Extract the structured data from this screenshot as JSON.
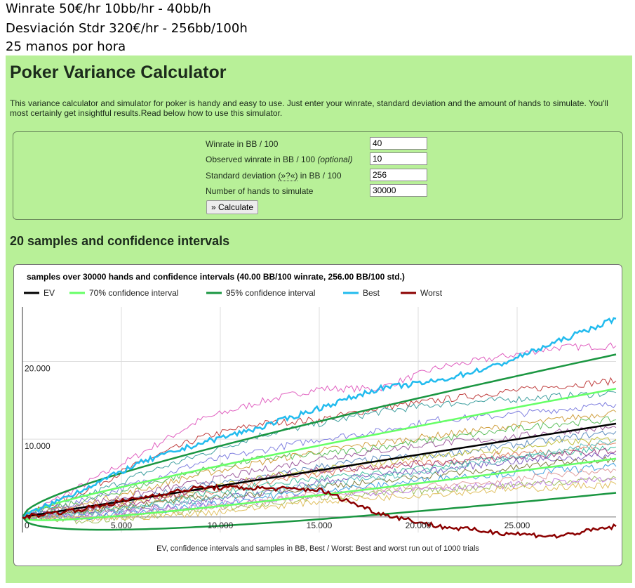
{
  "notes": [
    "Winrate 50€/hr 10bb/hr - 40bb/h",
    "Desviación Stdr 320€/hr - 256bb/100h",
    "25 manos por hora"
  ],
  "page": {
    "title": "Poker Variance Calculator",
    "intro": "This variance calculator and simulator for poker is handy and easy to use. Just enter your winrate, standard deviation and the amount of hands to simulate. You'll most certainly get insightful results.Read below how to use this simulator.",
    "section_title": "20 samples and confidence intervals"
  },
  "form": {
    "winrate_label": "Winrate in BB / 100",
    "winrate_value": "40",
    "observed_label": "Observed winrate in BB / 100",
    "observed_optional": "(optional)",
    "observed_value": "10",
    "std_label_pre": "Standard deviation",
    "std_help": "(»?«)",
    "std_label_post": "in BB / 100",
    "std_value": "256",
    "hands_label": "Number of hands to simulate",
    "hands_value": "30000",
    "calculate_label": "» Calculate"
  },
  "chart_data": {
    "type": "line",
    "title": "samples over 30000 hands and confidence intervals (40.00 BB/100 winrate, 256.00 BB/100 std.)",
    "caption": "EV, confidence intervals and samples in BB, Best / Worst: Best and worst run out of 1000 trials",
    "legend": [
      {
        "name": "EV",
        "color": "#000000"
      },
      {
        "name": "70% confidence interval",
        "color": "#66ff66"
      },
      {
        "name": "95% confidence interval",
        "color": "#1a9641"
      },
      {
        "name": "Best",
        "color": "#22bbee"
      },
      {
        "name": "Worst",
        "color": "#8b0000"
      }
    ],
    "xlim": [
      0,
      30000
    ],
    "ylim": [
      -2000,
      27000
    ],
    "x_ticks": [
      5000,
      10000,
      15000,
      20000,
      25000
    ],
    "x_tick_labels": [
      "5.000",
      "10.000",
      "15.000",
      "20.000",
      "25.000"
    ],
    "y_ticks": [
      0,
      10000,
      20000
    ],
    "y_tick_labels": [
      "0",
      "10.000",
      "20.000"
    ],
    "grid": true,
    "ev": {
      "x": [
        0,
        30000
      ],
      "y": [
        0,
        12000
      ]
    },
    "confidence_70": {
      "upper_end": 16500,
      "lower_end": 7500
    },
    "confidence_95": {
      "upper_end": 20900,
      "lower_end": 3100
    },
    "best": {
      "x": [
        0,
        3000,
        6000,
        9000,
        12000,
        15000,
        18000,
        21000,
        24000,
        27000,
        30000
      ],
      "y": [
        0,
        3500,
        7000,
        9500,
        11500,
        14000,
        16500,
        17500,
        19500,
        22500,
        25500
      ]
    },
    "worst": {
      "x": [
        0,
        3000,
        6000,
        9000,
        12000,
        15000,
        18000,
        21000,
        24000,
        27000,
        30000
      ],
      "y": [
        0,
        1000,
        2500,
        3800,
        3700,
        3500,
        500,
        -1200,
        -2000,
        -2500,
        -1200
      ]
    },
    "samples": [
      {
        "color": "#e060c0",
        "y": [
          0,
          4000,
          8200,
          12500,
          14800,
          16500,
          16500,
          19200,
          20500,
          21800,
          22000
        ]
      },
      {
        "color": "#c04040",
        "y": [
          0,
          3200,
          7000,
          10200,
          12000,
          12500,
          14000,
          15000,
          16000,
          16800,
          17500
        ]
      },
      {
        "color": "#40a0a0",
        "y": [
          0,
          2500,
          5500,
          8000,
          10500,
          12000,
          13500,
          14500,
          15000,
          15500,
          16000
        ]
      },
      {
        "color": "#8080e0",
        "y": [
          0,
          2000,
          4500,
          7000,
          8500,
          10000,
          11000,
          12500,
          13000,
          13800,
          14500
        ]
      },
      {
        "color": "#d0a040",
        "y": [
          0,
          1500,
          3500,
          5500,
          7000,
          8500,
          9500,
          10500,
          11500,
          12500,
          13500
        ]
      },
      {
        "color": "#60c060",
        "y": [
          0,
          2000,
          4000,
          6000,
          7500,
          8000,
          9000,
          10000,
          11000,
          12000,
          12500
        ]
      },
      {
        "color": "#a060a0",
        "y": [
          0,
          1500,
          3000,
          4500,
          6000,
          7500,
          8500,
          9500,
          10000,
          11000,
          11500
        ]
      },
      {
        "color": "#6090c0",
        "y": [
          0,
          1000,
          2500,
          4000,
          5000,
          6500,
          7500,
          8000,
          9000,
          10000,
          11000
        ]
      },
      {
        "color": "#c0c040",
        "y": [
          0,
          500,
          2000,
          3500,
          5000,
          6000,
          7000,
          8000,
          8500,
          9500,
          10000
        ]
      },
      {
        "color": "#e08060",
        "y": [
          0,
          1000,
          2000,
          3000,
          4500,
          5500,
          6500,
          7000,
          8000,
          8500,
          9500
        ]
      },
      {
        "color": "#40c0a0",
        "y": [
          0,
          500,
          1500,
          3000,
          4000,
          5000,
          5500,
          6500,
          7500,
          8000,
          9000
        ]
      },
      {
        "color": "#a04080",
        "y": [
          0,
          800,
          2000,
          3500,
          5000,
          6000,
          6500,
          7000,
          7500,
          8000,
          8500
        ]
      },
      {
        "color": "#8060c0",
        "y": [
          0,
          0,
          1000,
          2000,
          3000,
          4500,
          5500,
          6000,
          7000,
          7500,
          8000
        ]
      },
      {
        "color": "#808040",
        "y": [
          0,
          500,
          1500,
          2500,
          3000,
          4000,
          4500,
          5500,
          6000,
          7000,
          7500
        ]
      },
      {
        "color": "#40a0e0",
        "y": [
          0,
          0,
          500,
          1500,
          2500,
          3500,
          4000,
          5000,
          5500,
          6000,
          6500
        ]
      },
      {
        "color": "#e0a0a0",
        "y": [
          0,
          -200,
          500,
          1000,
          2000,
          3000,
          3500,
          4000,
          4500,
          5500,
          6000
        ]
      },
      {
        "color": "#a0c060",
        "y": [
          0,
          -500,
          0,
          1000,
          1500,
          2500,
          3000,
          3500,
          4000,
          4500,
          5000
        ]
      },
      {
        "color": "#c080e0",
        "y": [
          0,
          200,
          800,
          1500,
          2000,
          2800,
          3200,
          3800,
          4000,
          4500,
          4800
        ]
      },
      {
        "color": "#e0c060",
        "y": [
          0,
          -300,
          0,
          500,
          1200,
          2000,
          2500,
          3000,
          3500,
          3800,
          4200
        ]
      },
      {
        "color": "#60c0c0",
        "y": [
          0,
          400,
          1200,
          2200,
          3200,
          4200,
          5000,
          6000,
          7200,
          8500,
          9800
        ]
      }
    ]
  }
}
